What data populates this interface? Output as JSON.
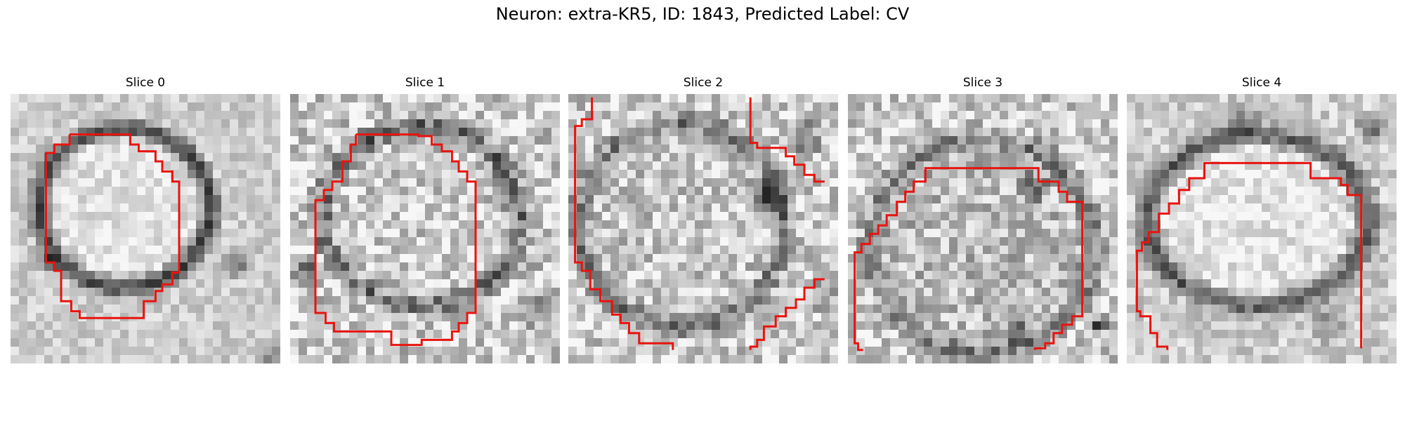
{
  "figure": {
    "title": "Neuron: extra-KR5, ID: 1843, Predicted Label: CV",
    "contour_color": "#e8140f"
  },
  "panels": [
    {
      "title": "Slice 0",
      "image_description": "grayscale micrograph of a round neuron with a dark membrane ring",
      "contour_description": "closed red stepped outline around the cell"
    },
    {
      "title": "Slice 1",
      "image_description": "grayscale micrograph of a round neuron with noisy speckled texture",
      "contour_description": "closed red stepped outline around the cell"
    },
    {
      "title": "Slice 2",
      "image_description": "grayscale micrograph with a dark blob at right, cell partially visible",
      "contour_description": "two open red stepped segments, left arc and upper-right corner"
    },
    {
      "title": "Slice 3",
      "image_description": "grayscale micrograph of a neuron, lower portion darker",
      "contour_description": "open red stepped arc over the top of the cell"
    },
    {
      "title": "Slice 4",
      "image_description": "grayscale micrograph of a neuron with a dark ring below center",
      "contour_description": "open red stepped arc, left side and right vertical edge"
    }
  ]
}
